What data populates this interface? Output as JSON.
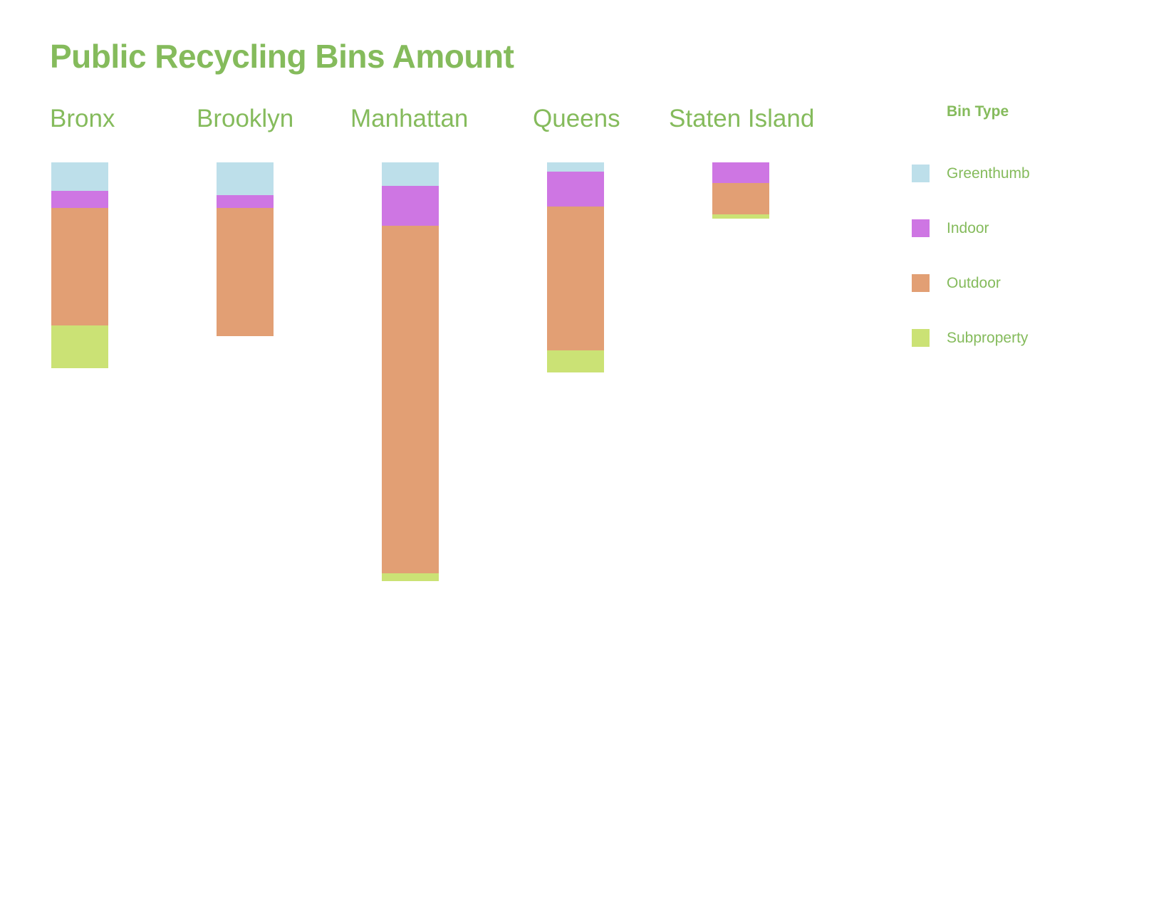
{
  "chart_data": {
    "type": "bar",
    "stacked": true,
    "orientation": "downward",
    "title": "Public Recycling Bins Amount",
    "categories": [
      "Bronx",
      "Brooklyn",
      "Manhattan",
      "Queens",
      "Staten Island"
    ],
    "series": [
      {
        "name": "Greenthumb",
        "color": "#bddfea",
        "values": [
          40,
          46,
          33,
          13,
          0
        ]
      },
      {
        "name": "Indoor",
        "color": "#ce76e3",
        "values": [
          24,
          18,
          56,
          49,
          29
        ]
      },
      {
        "name": "Outdoor",
        "color": "#e29f74",
        "values": [
          165,
          180,
          488,
          202,
          44
        ]
      },
      {
        "name": "Subproperty",
        "color": "#cbe275",
        "values": [
          60,
          0,
          11,
          31,
          6
        ]
      }
    ],
    "legend": {
      "title": "Bin Type",
      "position": "right"
    },
    "grid": false,
    "axes_visible": false
  },
  "style": {
    "text_color": "#85bb5c",
    "background": "#ffffff"
  }
}
